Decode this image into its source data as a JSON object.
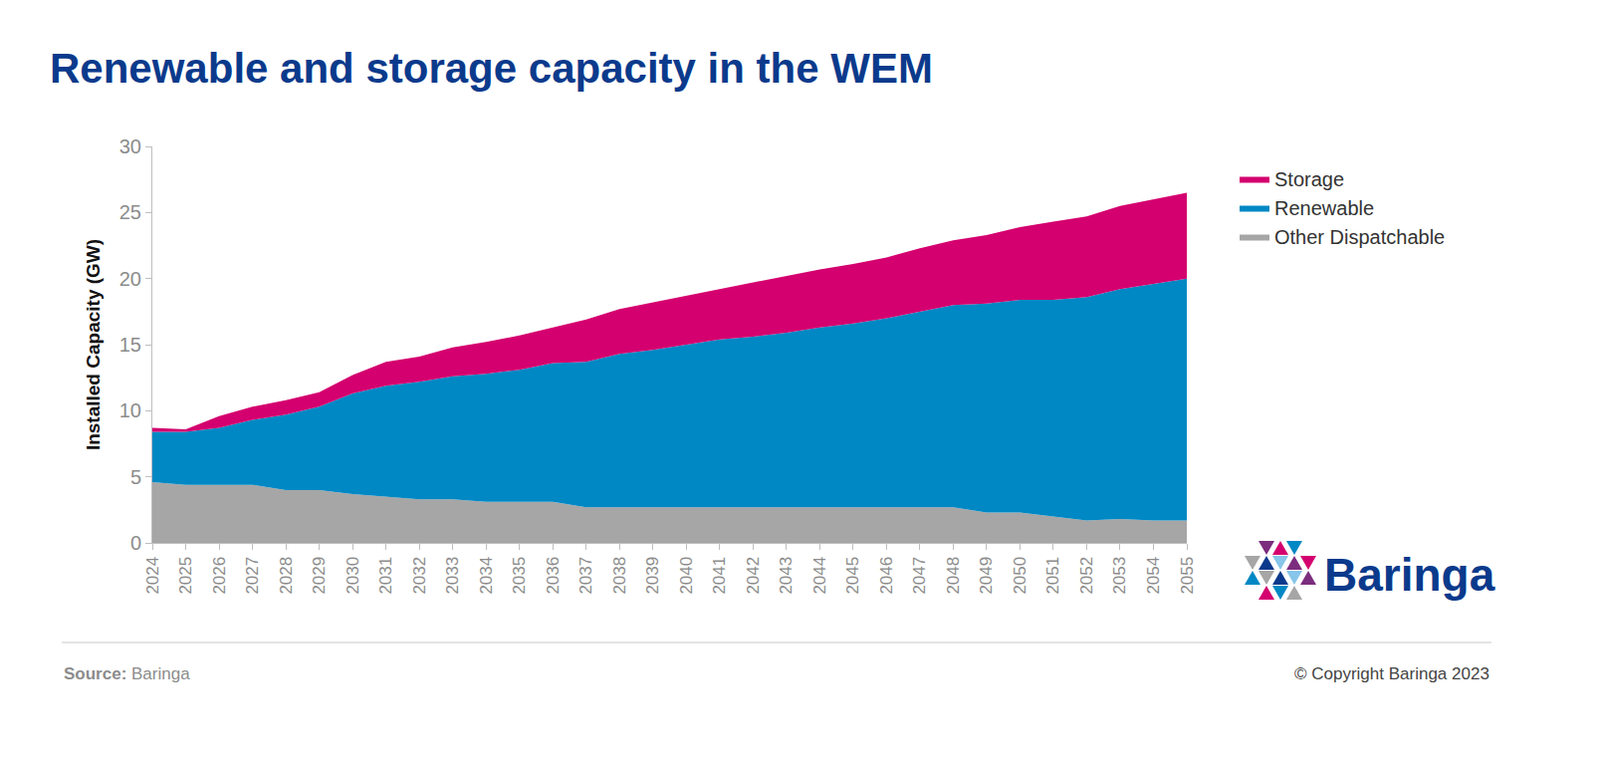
{
  "chart_data": {
    "type": "area",
    "title": "Renewable and storage capacity in the WEM",
    "y_label": "Installed Capacity (GW)",
    "stacked": true,
    "grid": false,
    "legend": "right",
    "x": [
      2024,
      2025,
      2026,
      2027,
      2028,
      2029,
      2030,
      2031,
      2032,
      2033,
      2034,
      2035,
      2036,
      2037,
      2038,
      2039,
      2040,
      2041,
      2042,
      2043,
      2044,
      2045,
      2046,
      2047,
      2048,
      2049,
      2050,
      2051,
      2052,
      2053,
      2054,
      2055
    ],
    "xlim": [
      2024,
      2055
    ],
    "xticks": [
      2024,
      2025,
      2026,
      2027,
      2028,
      2029,
      2030,
      2031,
      2032,
      2033,
      2034,
      2035,
      2036,
      2037,
      2038,
      2039,
      2040,
      2041,
      2042,
      2043,
      2044,
      2045,
      2046,
      2047,
      2048,
      2049,
      2050,
      2051,
      2052,
      2053,
      2054,
      2055
    ],
    "ylim": [
      0,
      30
    ],
    "yticks": [
      0,
      5,
      10,
      15,
      20,
      25,
      30
    ],
    "series": [
      {
        "name": "Other Dispatchable",
        "color": "#a6a6a6",
        "values": [
          4.6,
          4.4,
          4.4,
          4.4,
          4.0,
          4.0,
          3.7,
          3.5,
          3.3,
          3.3,
          3.1,
          3.1,
          3.1,
          2.7,
          2.7,
          2.7,
          2.7,
          2.7,
          2.7,
          2.7,
          2.7,
          2.7,
          2.7,
          2.7,
          2.7,
          2.3,
          2.3,
          2.0,
          1.7,
          1.8,
          1.7,
          1.7
        ]
      },
      {
        "name": "Renewable",
        "color": "#0088c4",
        "values": [
          3.8,
          4.0,
          4.3,
          4.9,
          5.7,
          6.3,
          7.6,
          8.4,
          8.9,
          9.3,
          9.7,
          10.0,
          10.5,
          11.0,
          11.6,
          11.9,
          12.3,
          12.7,
          12.9,
          13.2,
          13.6,
          13.9,
          14.3,
          14.8,
          15.3,
          15.8,
          16.1,
          16.4,
          16.9,
          17.4,
          17.9,
          18.3
        ]
      },
      {
        "name": "Storage",
        "color": "#d4006f",
        "values": [
          0.3,
          0.2,
          0.9,
          1.0,
          1.1,
          1.1,
          1.4,
          1.8,
          1.9,
          2.2,
          2.4,
          2.6,
          2.7,
          3.2,
          3.4,
          3.6,
          3.7,
          3.8,
          4.1,
          4.3,
          4.4,
          4.5,
          4.6,
          4.8,
          4.9,
          5.2,
          5.5,
          5.9,
          6.1,
          6.3,
          6.4,
          6.5
        ]
      }
    ],
    "logo": "Baringa",
    "source_label": "Source:",
    "source": "Baringa",
    "copyright": "© Copyright Baringa 2023"
  }
}
